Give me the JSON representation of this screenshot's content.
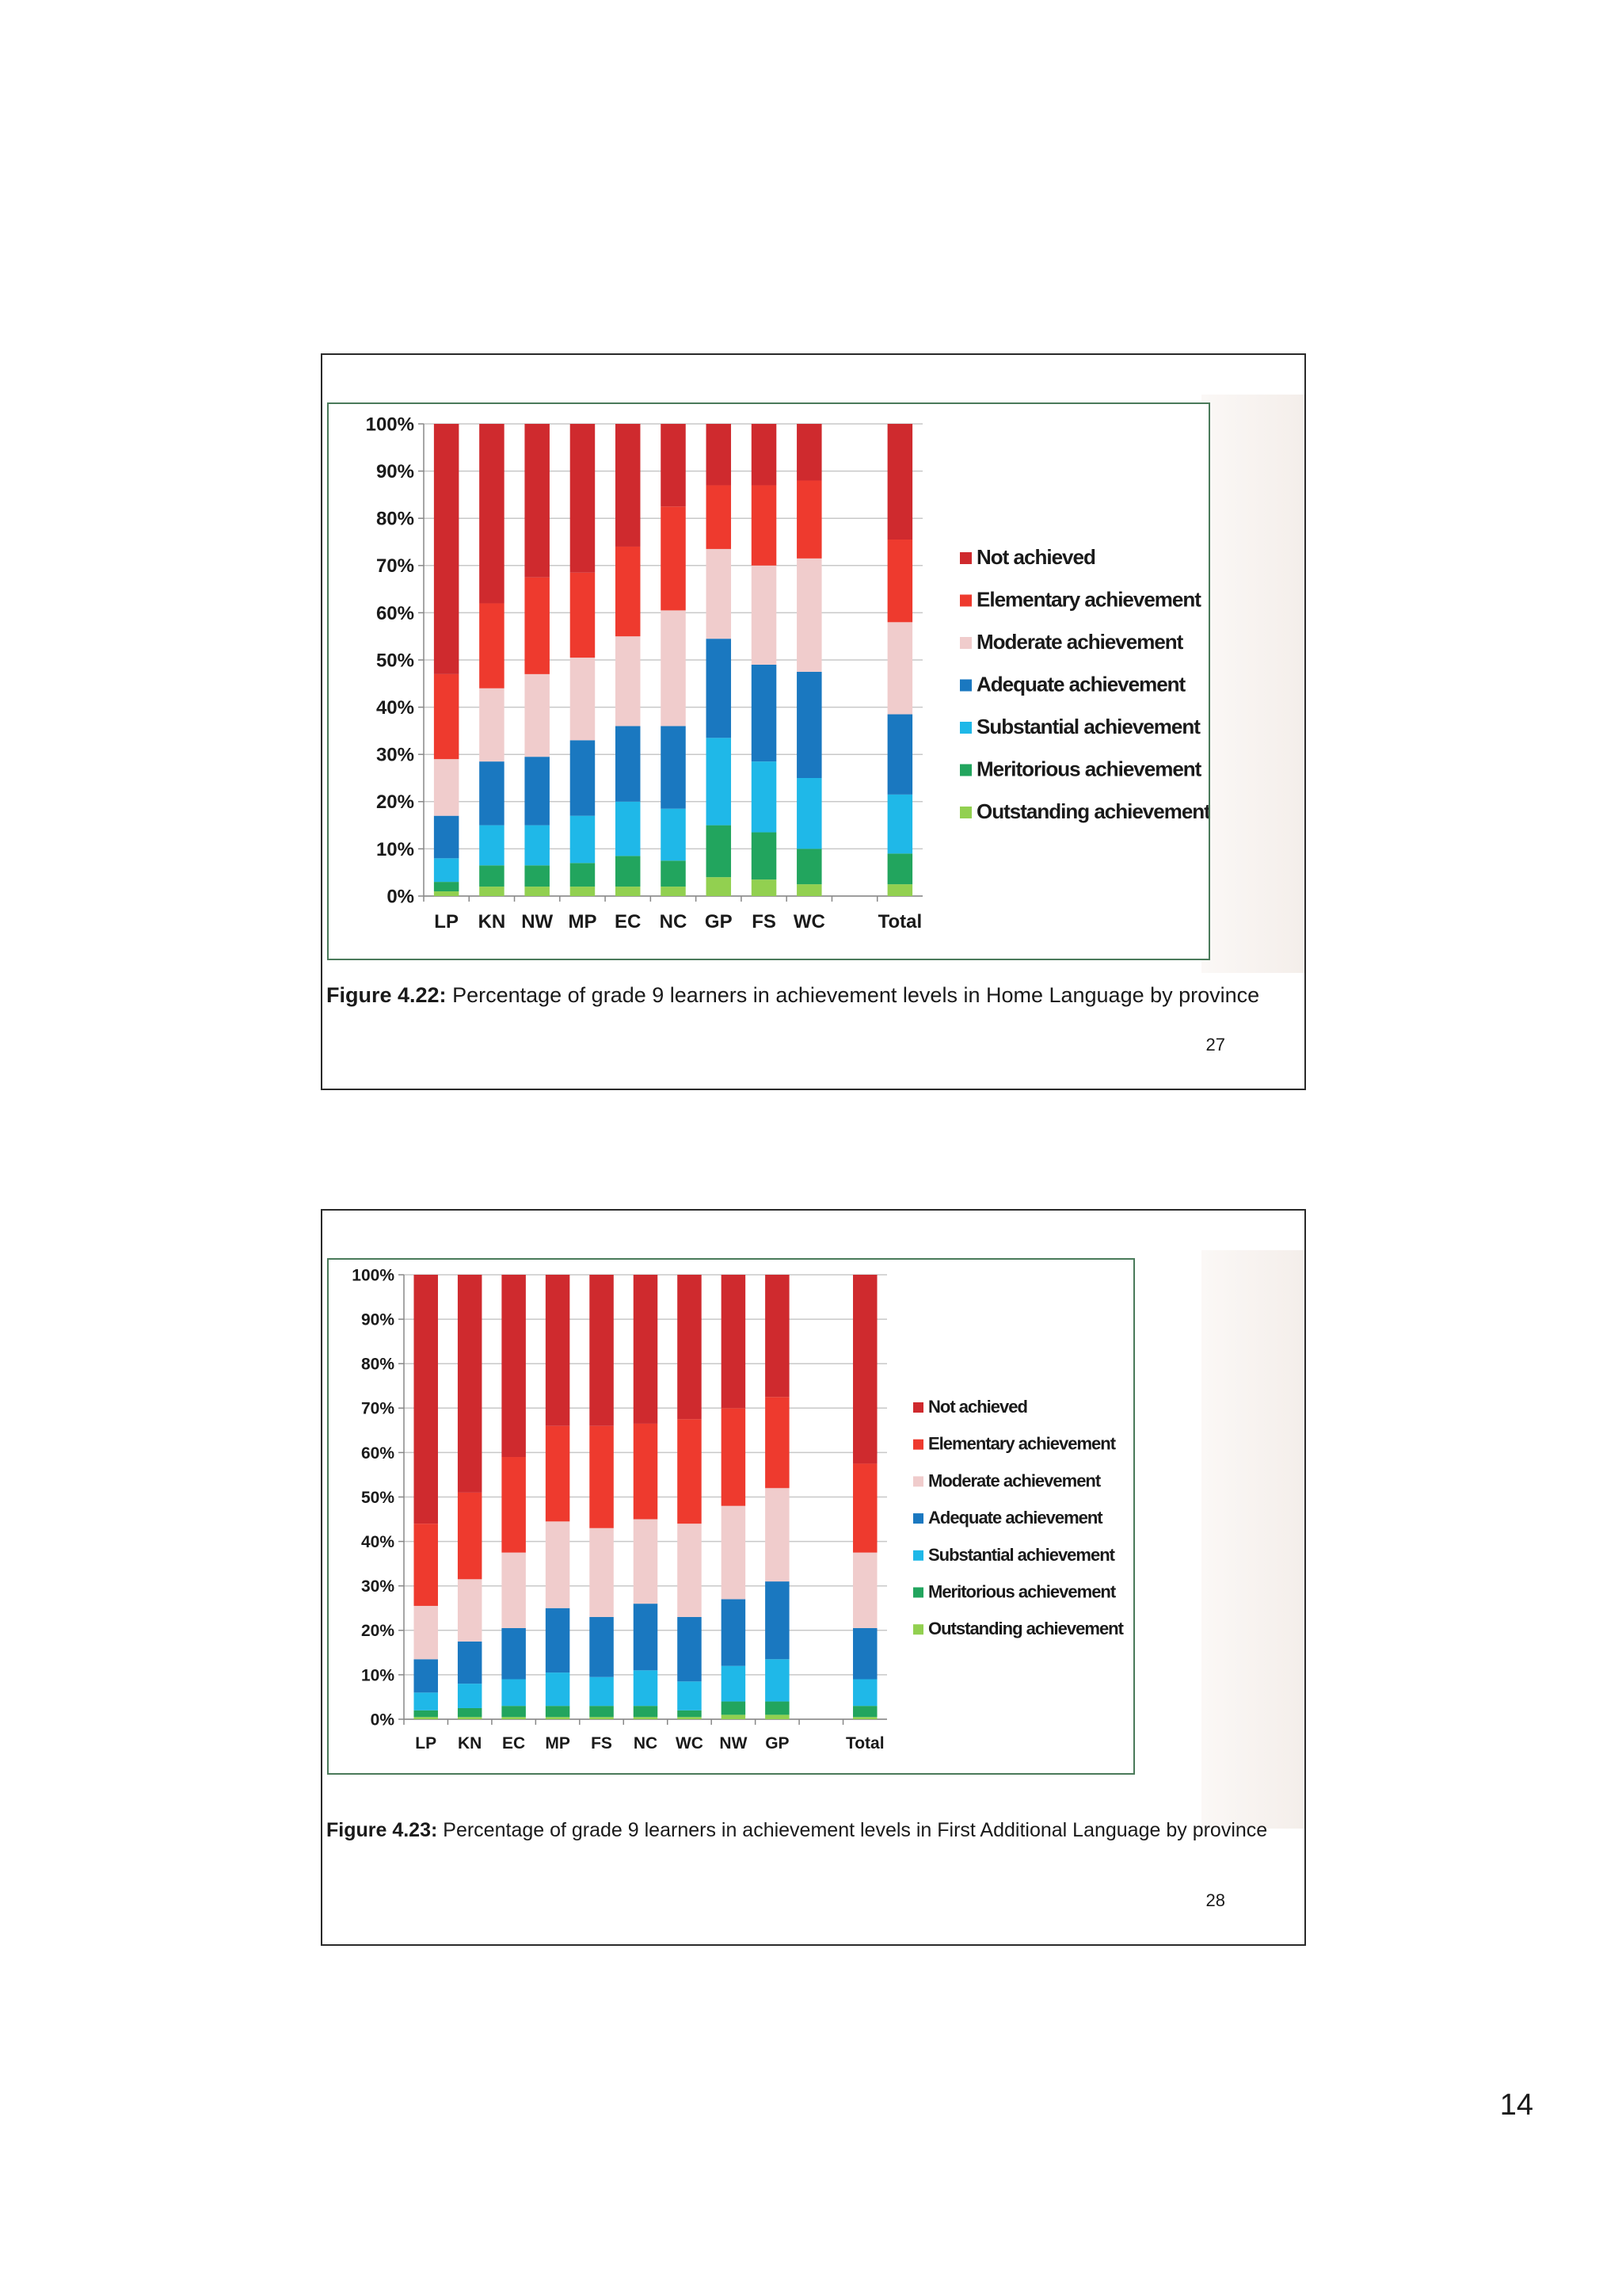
{
  "page_number": "14",
  "chart_data": [
    {
      "type": "bar",
      "stacked": true,
      "slide_number": "27",
      "figure_label": "Figure 4.22:",
      "caption": "Percentage of grade 9 learners in achievement levels in Home Language by province",
      "categories": [
        "LP",
        "KN",
        "NW",
        "MP",
        "EC",
        "NC",
        "GP",
        "FS",
        "WC",
        "",
        "Total"
      ],
      "yticks": [
        "0%",
        "10%",
        "20%",
        "30%",
        "40%",
        "50%",
        "60%",
        "70%",
        "80%",
        "90%",
        "100%"
      ],
      "ylim": [
        0,
        100
      ],
      "grid": true,
      "legend_position": "right",
      "series": [
        {
          "name": "Outstanding achievement",
          "color": "#92d050",
          "values": [
            1,
            2,
            2,
            2,
            2,
            2,
            4,
            3.5,
            2.5,
            0,
            2.5
          ]
        },
        {
          "name": "Meritorious achievement",
          "color": "#22a55e",
          "values": [
            2,
            4.5,
            4.5,
            5,
            6.5,
            5.5,
            11,
            10,
            7.5,
            0,
            6.5
          ]
        },
        {
          "name": "Substantial achievement",
          "color": "#1fb8e8",
          "values": [
            5,
            8.5,
            8.5,
            10,
            11.5,
            11,
            18.5,
            15,
            15,
            0,
            12.5
          ]
        },
        {
          "name": "Adequate achievement",
          "color": "#1a78c0",
          "values": [
            9,
            13.5,
            14.5,
            16,
            16,
            17.5,
            21,
            20.5,
            22.5,
            0,
            17
          ]
        },
        {
          "name": "Moderate achievement",
          "color": "#f0cccc",
          "values": [
            12,
            15.5,
            17.5,
            17.5,
            19,
            24.5,
            19,
            21,
            24,
            0,
            19.5
          ]
        },
        {
          "name": "Elementary achievement",
          "color": "#ee3a2e",
          "values": [
            18,
            18,
            20.5,
            18,
            19,
            22,
            13.5,
            17,
            16.5,
            0,
            17.5
          ]
        },
        {
          "name": "Not achieved",
          "color": "#cf2a2e",
          "values": [
            53,
            38,
            32.5,
            31.5,
            26,
            17.5,
            13,
            13,
            12,
            0,
            24.5
          ]
        }
      ]
    },
    {
      "type": "bar",
      "stacked": true,
      "slide_number": "28",
      "figure_label": "Figure 4.23:",
      "caption": "Percentage of grade 9 learners in achievement levels in First Additional Language by province",
      "categories": [
        "LP",
        "KN",
        "EC",
        "MP",
        "FS",
        "NC",
        "WC",
        "NW",
        "GP",
        "",
        "Total"
      ],
      "yticks": [
        "0%",
        "10%",
        "20%",
        "30%",
        "40%",
        "50%",
        "60%",
        "70%",
        "80%",
        "90%",
        "100%"
      ],
      "ylim": [
        0,
        100
      ],
      "grid": true,
      "legend_position": "right",
      "series": [
        {
          "name": "Outstanding achievement",
          "color": "#92d050",
          "values": [
            0.5,
            0.5,
            0.5,
            0.5,
            0.5,
            0.5,
            0.5,
            1,
            1,
            0,
            0.5
          ]
        },
        {
          "name": "Meritorious achievement",
          "color": "#22a55e",
          "values": [
            1.5,
            2,
            2.5,
            2.5,
            2.5,
            2.5,
            1.5,
            3,
            3,
            0,
            2.5
          ]
        },
        {
          "name": "Substantial achievement",
          "color": "#1fb8e8",
          "values": [
            4,
            5.5,
            6,
            7.5,
            6.5,
            8,
            6.5,
            8,
            9.5,
            0,
            6
          ]
        },
        {
          "name": "Adequate achievement",
          "color": "#1a78c0",
          "values": [
            7.5,
            9.5,
            11.5,
            14.5,
            13.5,
            15,
            14.5,
            15,
            17.5,
            0,
            11.5
          ]
        },
        {
          "name": "Moderate achievement",
          "color": "#f0cccc",
          "values": [
            12,
            14,
            17,
            19.5,
            20,
            19,
            21,
            21,
            21,
            0,
            17
          ]
        },
        {
          "name": "Elementary achievement",
          "color": "#ee3a2e",
          "values": [
            18.5,
            19.5,
            21.5,
            21.5,
            23,
            21.5,
            23.5,
            22,
            20.5,
            0,
            20
          ]
        },
        {
          "name": "Not achieved",
          "color": "#cf2a2e",
          "values": [
            56,
            49,
            41,
            34,
            34,
            33.5,
            32.5,
            30,
            27.5,
            0,
            42.5
          ]
        }
      ]
    }
  ]
}
